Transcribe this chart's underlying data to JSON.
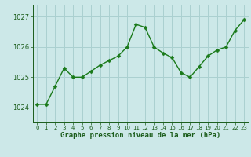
{
  "x": [
    0,
    1,
    2,
    3,
    4,
    5,
    6,
    7,
    8,
    9,
    10,
    11,
    12,
    13,
    14,
    15,
    16,
    17,
    18,
    19,
    20,
    21,
    22,
    23
  ],
  "y": [
    1024.1,
    1024.1,
    1024.7,
    1025.3,
    1025.0,
    1025.0,
    1025.2,
    1025.4,
    1025.55,
    1025.7,
    1026.0,
    1026.75,
    1026.65,
    1026.0,
    1025.8,
    1025.65,
    1025.15,
    1025.0,
    1025.35,
    1025.7,
    1025.9,
    1026.0,
    1026.55,
    1026.9
  ],
  "line_color": "#1a7a1a",
  "marker_color": "#1a7a1a",
  "bg_color": "#cce8e8",
  "grid_color": "#aad0d0",
  "xlabel": "Graphe pression niveau de la mer (hPa)",
  "xlabel_color": "#1a5c1a",
  "tick_color": "#1a5c1a",
  "yticks": [
    1024,
    1025,
    1026,
    1027
  ],
  "ylim": [
    1023.5,
    1027.4
  ],
  "xlim": [
    -0.5,
    23.5
  ],
  "xticks": [
    0,
    1,
    2,
    3,
    4,
    5,
    6,
    7,
    8,
    9,
    10,
    11,
    12,
    13,
    14,
    15,
    16,
    17,
    18,
    19,
    20,
    21,
    22,
    23
  ]
}
